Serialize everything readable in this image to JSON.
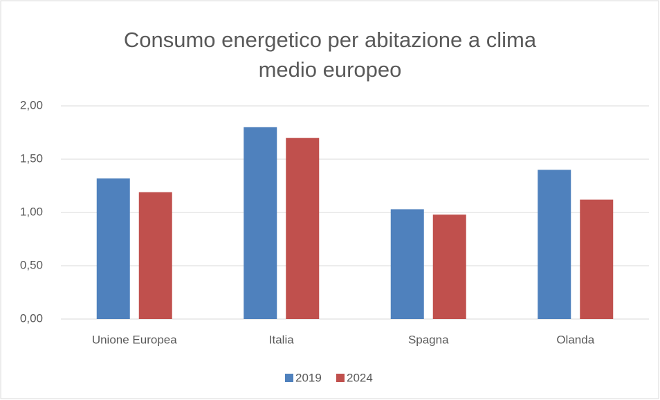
{
  "chart_data": {
    "type": "bar",
    "title": "Consumo energetico per abitazione a clima medio europeo",
    "categories": [
      "Unione Europea",
      "Italia",
      "Spagna",
      "Olanda"
    ],
    "series": [
      {
        "name": "2019",
        "color": "#4f81bd",
        "values": [
          1.32,
          1.8,
          1.03,
          1.4
        ]
      },
      {
        "name": "2024",
        "color": "#c0504d",
        "values": [
          1.19,
          1.7,
          0.98,
          1.12
        ]
      }
    ],
    "ylim": [
      0,
      2
    ],
    "yticks": [
      {
        "value": 0,
        "label": "0,00"
      },
      {
        "value": 0.5,
        "label": "0,50"
      },
      {
        "value": 1,
        "label": "1,00"
      },
      {
        "value": 1.5,
        "label": "1,50"
      },
      {
        "value": 2,
        "label": "2,00"
      }
    ],
    "grid": true,
    "legend": "bottom"
  }
}
